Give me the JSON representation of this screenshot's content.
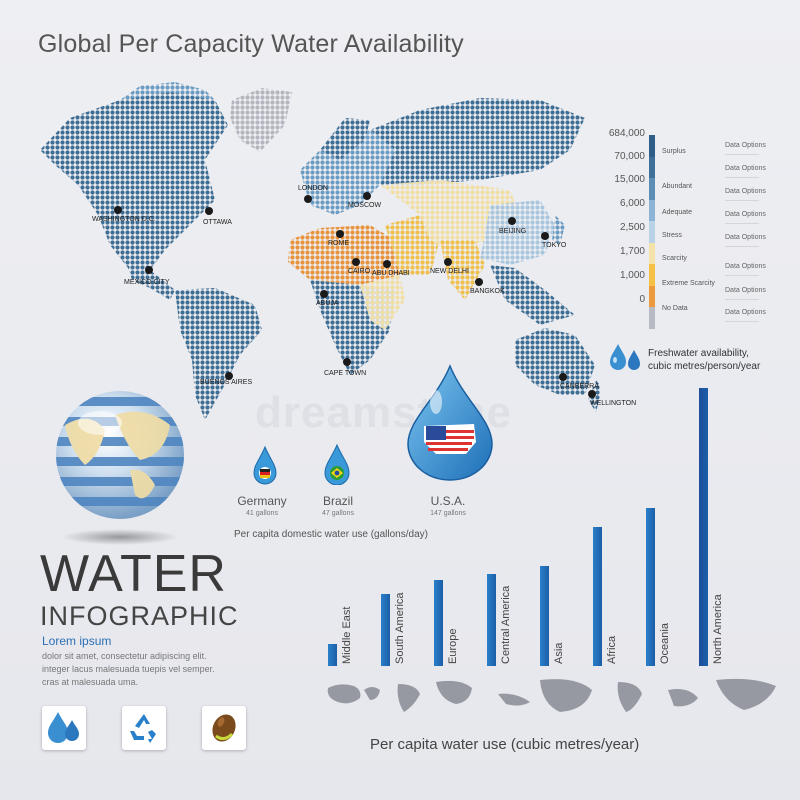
{
  "title": "Global Per Capacity Water Availability",
  "watermark": "dreamstime",
  "cities": [
    {
      "name": "WASHINGTON D.C."
    },
    {
      "name": "OTTAWA"
    },
    {
      "name": "MEXICO CITY"
    },
    {
      "name": "BUENOS AIRES"
    },
    {
      "name": "LONDON"
    },
    {
      "name": "MOSCOW"
    },
    {
      "name": "ROME"
    },
    {
      "name": "CAIRO"
    },
    {
      "name": "ABU DHABI"
    },
    {
      "name": "NEW DELHI"
    },
    {
      "name": "BEIJING"
    },
    {
      "name": "TOKYO"
    },
    {
      "name": "BANGKOK"
    },
    {
      "name": "ABUJA"
    },
    {
      "name": "CAPE TOWN"
    },
    {
      "name": "CANBERRA"
    },
    {
      "name": "WELLINGTON"
    }
  ],
  "legend": {
    "levels": [
      {
        "value": "684,000",
        "name": "",
        "color": "#2f5f88"
      },
      {
        "value": "70,000",
        "name": "Surplus",
        "color": "#3e7099"
      },
      {
        "value": "15,000",
        "name": "Abundant",
        "color": "#5c8db5"
      },
      {
        "value": "6,000",
        "name": "Adequate",
        "color": "#8db4d4"
      },
      {
        "value": "2,500",
        "name": "Stress",
        "color": "#b9d2e6"
      },
      {
        "value": "1,700",
        "name": "Scarcity",
        "color": "#f5e2a8"
      },
      {
        "value": "1,000",
        "name": "Extreme Scarcity",
        "color": "#f4c046"
      },
      {
        "value": "0",
        "name": "No Data",
        "color": "#eb9a3e"
      }
    ],
    "no_data_color": "#b9bbc4",
    "option_label": "Data Options",
    "caption_line1": "Freshwater availability,",
    "caption_line2": "cubic metres/person/year"
  },
  "domestic_use": {
    "items": [
      {
        "name": "Germany",
        "value": "41 gallons",
        "flag": "germany"
      },
      {
        "name": "Brazil",
        "value": "47 gallons",
        "flag": "brazil"
      },
      {
        "name": "U.S.A.",
        "value": "147 gallons",
        "flag": "usa"
      }
    ],
    "caption": "Per capita domestic water use (gallons/day)"
  },
  "headline": {
    "big": "WATER",
    "sub": "INFOGRAPHIC",
    "lorem_title": "Lorem ipsum",
    "lorem_lines": [
      "dolor sit amet, consectetur adipiscing elit.",
      "integer lacus malesuada tuepis vel semper.",
      "cras at malesuada uma."
    ]
  },
  "icons": [
    "water-drops-icon",
    "recycle-icon",
    "seed-icon"
  ],
  "chart_data": {
    "type": "bar",
    "title": "",
    "xlabel": "Per capita water use (cubic metres/year)",
    "ylabel": "",
    "categories": [
      "Middle East",
      "South America",
      "Europe",
      "Central America",
      "Asia",
      "Africa",
      "Oceania",
      "North America"
    ],
    "values": [
      8,
      26,
      31,
      33,
      36,
      50,
      57,
      100
    ],
    "ylim": [
      0,
      100
    ],
    "grid": false,
    "bar_color": "#2b7fca",
    "highlight_color": "#1d4e9c"
  },
  "chart_caption": "Per capita water use (cubic metres/year)"
}
